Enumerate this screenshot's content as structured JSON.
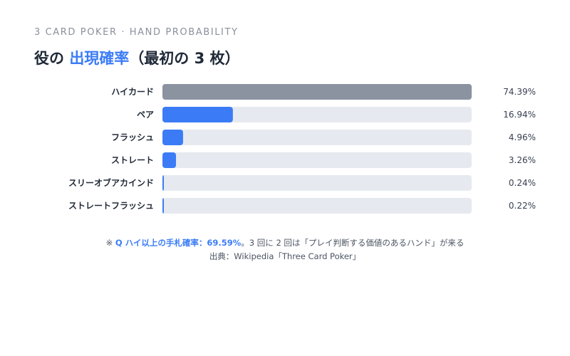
{
  "header": {
    "eyebrow": "3 CARD POKER · HAND PROBABILITY",
    "title_prefix": "役の",
    "title_accent": "出現確率",
    "title_suffix": "（最初の 3 枚）"
  },
  "chart_data": {
    "type": "bar",
    "orientation": "horizontal",
    "categories": [
      "ハイカード",
      "ペア",
      "フラッシュ",
      "ストレート",
      "スリーオブアカインド",
      "ストレートフラッシュ"
    ],
    "values": [
      74.39,
      16.94,
      4.96,
      3.26,
      0.24,
      0.22
    ],
    "value_labels": [
      "74.39%",
      "16.94%",
      "4.96%",
      "3.26%",
      "0.24%",
      "0.22%"
    ],
    "max": 74.39,
    "unit": "%",
    "colors": {
      "highlight": "#8b93a1",
      "bar": "#3b7cf6",
      "track": "#e6eaf0"
    }
  },
  "notes": {
    "mark": "※ ",
    "highlight": "Q ハイ以上の手札確率：69.59%",
    "rest": "。3 回に 2 回は「プレイ判断する価値のあるハンド」が来る",
    "source": "出典：Wikipedia「Three Card Poker」"
  }
}
